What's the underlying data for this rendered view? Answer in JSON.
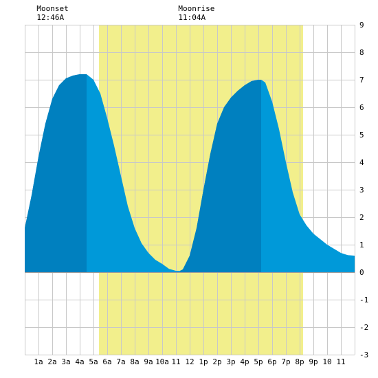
{
  "chart_data": {
    "type": "area",
    "title": "",
    "xlabel": "",
    "ylabel": "",
    "xlim": [
      0,
      24
    ],
    "ylim": [
      -3,
      9
    ],
    "grid": true,
    "x_ticks": [
      {
        "x": 1,
        "label": "1a"
      },
      {
        "x": 2,
        "label": "2a"
      },
      {
        "x": 3,
        "label": "3a"
      },
      {
        "x": 4,
        "label": "4a"
      },
      {
        "x": 5,
        "label": "5a"
      },
      {
        "x": 6,
        "label": "6a"
      },
      {
        "x": 7,
        "label": "7a"
      },
      {
        "x": 8,
        "label": "8a"
      },
      {
        "x": 9,
        "label": "9a"
      },
      {
        "x": 10,
        "label": "10a"
      },
      {
        "x": 11,
        "label": "11"
      },
      {
        "x": 12,
        "label": "12"
      },
      {
        "x": 13,
        "label": "1p"
      },
      {
        "x": 14,
        "label": "2p"
      },
      {
        "x": 15,
        "label": "3p"
      },
      {
        "x": 16,
        "label": "4p"
      },
      {
        "x": 17,
        "label": "5p"
      },
      {
        "x": 18,
        "label": "6p"
      },
      {
        "x": 19,
        "label": "7p"
      },
      {
        "x": 20,
        "label": "8p"
      },
      {
        "x": 21,
        "label": "9p"
      },
      {
        "x": 22,
        "label": "10"
      },
      {
        "x": 23,
        "label": "11"
      }
    ],
    "y_ticks": [
      -3,
      -2,
      -1,
      0,
      1,
      2,
      3,
      4,
      5,
      6,
      7,
      8,
      9
    ],
    "moon_visible_window": [
      5.4,
      20.25
    ],
    "moon_events": [
      {
        "name": "Moonset",
        "time": "12:46A",
        "x": 0.77
      },
      {
        "name": "Moonrise",
        "time": "11:04A",
        "x": 11.07
      }
    ],
    "rising_tide_intervals": [
      [
        0,
        4.5
      ],
      [
        11.3,
        17.2
      ]
    ],
    "series": [
      {
        "x": [
          0,
          0.5,
          1,
          1.5,
          2,
          2.5,
          3,
          3.5,
          4,
          4.5,
          5,
          5.5,
          6,
          6.5,
          7,
          7.5,
          8,
          8.5,
          9,
          9.5,
          10,
          10.5,
          11,
          11.3,
          11.5,
          12,
          12.5,
          13,
          13.5,
          14,
          14.5,
          15,
          15.5,
          16,
          16.5,
          17,
          17.2,
          17.5,
          18,
          18.5,
          19,
          19.5,
          20,
          20.5,
          21,
          21.5,
          22,
          22.5,
          23,
          23.5,
          24
        ],
        "values": [
          1.6,
          2.8,
          4.2,
          5.4,
          6.3,
          6.8,
          7.05,
          7.15,
          7.2,
          7.2,
          7.0,
          6.5,
          5.6,
          4.6,
          3.5,
          2.4,
          1.6,
          1.05,
          0.7,
          0.45,
          0.3,
          0.12,
          0.05,
          0.05,
          0.1,
          0.6,
          1.6,
          3.0,
          4.3,
          5.4,
          6.0,
          6.35,
          6.6,
          6.8,
          6.95,
          7.0,
          7.0,
          6.9,
          6.2,
          5.2,
          4.0,
          2.9,
          2.1,
          1.7,
          1.4,
          1.2,
          1.0,
          0.85,
          0.7,
          0.62,
          0.6
        ]
      }
    ],
    "colors": {
      "tide_rising": "#0080bf",
      "tide_falling": "#0099d9",
      "moon_window": "#f2ef8c",
      "grid": "#c8c8c8",
      "zero_line": "#9a9a9a"
    }
  }
}
